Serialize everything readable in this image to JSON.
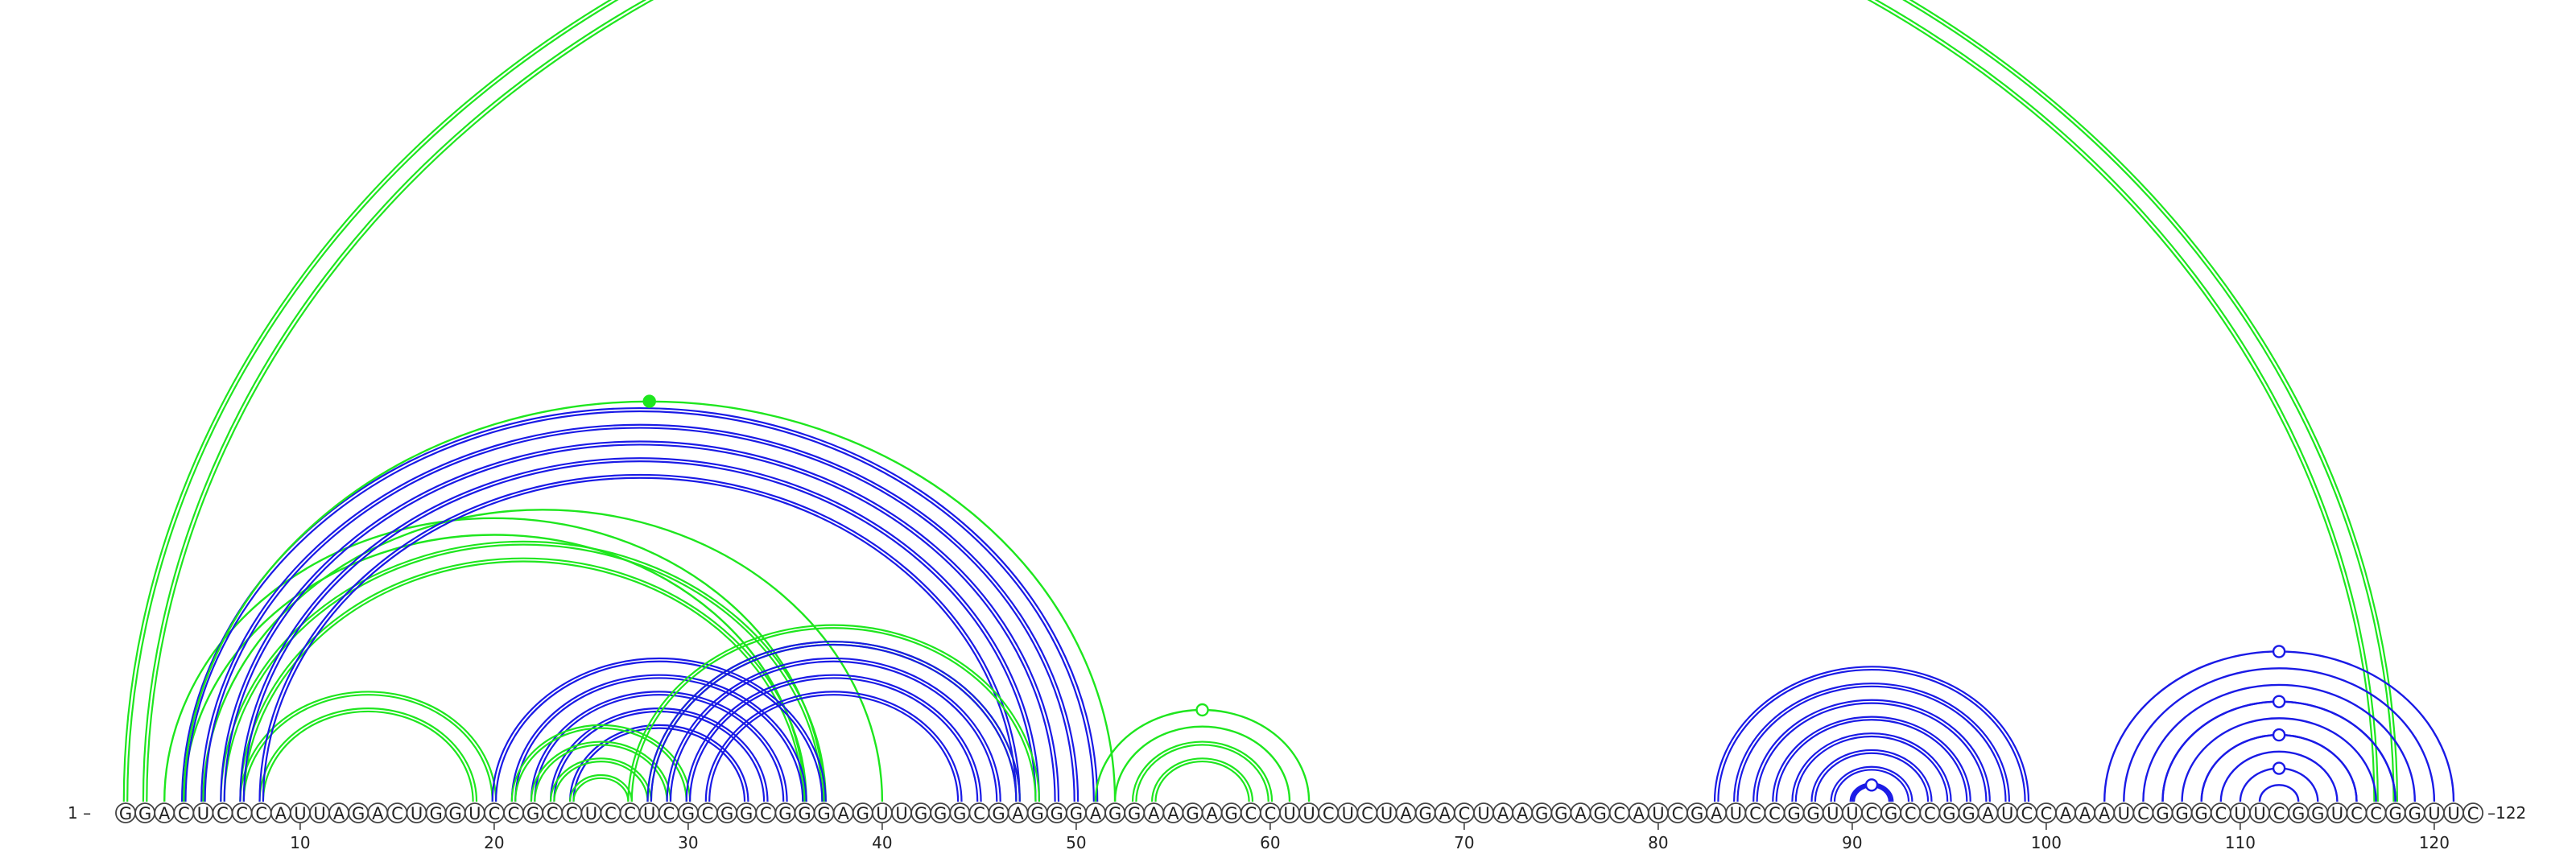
{
  "chart_data": {
    "type": "arc-diagram",
    "sequence": "GGACUCCCAUUAGACUGGUCCGCCUCCUCGCGGCGGGAGUUGGGCGAGGGAGGAAGAGCCUUCUCUAGACUAAGGAGCAUCGAUCCGGUUCGCCGGAUCCAAAUCGGGCUUCGGUCCGGUUC",
    "start_label": "1 –",
    "end_label": "–122",
    "tick_positions": [
      10,
      20,
      30,
      40,
      50,
      60,
      70,
      80,
      90,
      100,
      110,
      120
    ],
    "colors": {
      "green": "#1ee61e",
      "blue": "#1a1ae6"
    },
    "arc_groups": [
      {
        "name": "",
        "color": "green",
        "double": true,
        "pairs": [
          [
            1,
            118
          ],
          [
            2,
            117
          ]
        ]
      },
      {
        "name": "",
        "color": "green",
        "double": true,
        "pairs": [
          [
            7,
            20
          ],
          [
            8,
            19
          ]
        ]
      },
      {
        "name": "",
        "color": "green",
        "double": true,
        "pairs": [
          [
            6,
            37
          ],
          [
            7,
            36
          ]
        ]
      },
      {
        "name": "",
        "color": "green",
        "double": false,
        "pairs": [
          [
            3,
            37
          ],
          [
            4,
            36
          ],
          [
            5,
            40
          ]
        ]
      },
      {
        "name": "",
        "color": "blue",
        "double": true,
        "pairs": [
          [
            4,
            51
          ],
          [
            5,
            50
          ],
          [
            6,
            49
          ],
          [
            7,
            48
          ],
          [
            8,
            47
          ]
        ]
      },
      {
        "name": "",
        "color": "green",
        "double": false,
        "pairs": [
          [
            4,
            52
          ]
        ],
        "marker": {
          "pos": 28,
          "filled": true
        }
      },
      {
        "name": "",
        "color": "blue",
        "double": true,
        "pairs": [
          [
            20,
            37
          ],
          [
            21,
            36
          ],
          [
            22,
            35
          ],
          [
            23,
            34
          ],
          [
            24,
            33
          ]
        ]
      },
      {
        "name": "",
        "color": "green",
        "double": true,
        "pairs": [
          [
            21,
            30
          ],
          [
            22,
            29
          ],
          [
            23,
            28
          ],
          [
            24,
            27
          ]
        ]
      },
      {
        "name": "",
        "color": "green",
        "double": true,
        "pairs": [
          [
            27,
            48
          ],
          [
            28,
            47
          ]
        ]
      },
      {
        "name": "",
        "color": "blue",
        "double": true,
        "pairs": [
          [
            28,
            47
          ],
          [
            29,
            46
          ],
          [
            30,
            45
          ],
          [
            31,
            44
          ]
        ]
      },
      {
        "name": "",
        "color": "green",
        "double": false,
        "pairs": [
          [
            51,
            62
          ],
          [
            52,
            61
          ]
        ],
        "marker": {
          "pos": 56.5,
          "filled": false
        }
      },
      {
        "name": "",
        "color": "green",
        "double": true,
        "pairs": [
          [
            53,
            60
          ],
          [
            54,
            59
          ]
        ]
      },
      {
        "name": "",
        "color": "blue",
        "double": true,
        "pairs": [
          [
            83,
            99
          ],
          [
            84,
            98
          ],
          [
            85,
            97
          ],
          [
            86,
            96
          ],
          [
            87,
            95
          ],
          [
            88,
            94
          ],
          [
            89,
            93
          ],
          [
            90,
            92
          ]
        ]
      },
      {
        "name": "",
        "color": "blue",
        "double": false,
        "pairs": [
          [
            103,
            121
          ],
          [
            104,
            120
          ],
          [
            105,
            119
          ],
          [
            106,
            118
          ],
          [
            107,
            117
          ],
          [
            108,
            116
          ],
          [
            109,
            115
          ],
          [
            110,
            114
          ],
          [
            111,
            113
          ]
        ],
        "markers": [
          {
            "pos": 112,
            "filled": false
          }
        ]
      },
      {
        "name": "",
        "color": "blue",
        "double": false,
        "pairs": [
          [
            106,
            118
          ],
          [
            108,
            116
          ]
        ],
        "marker": {
          "pos": 112,
          "filled": false
        }
      },
      {
        "name": "",
        "color": "blue",
        "double": false,
        "pairs": [
          [
            90,
            92
          ]
        ],
        "marker": {
          "pos": 91,
          "filled": false
        }
      }
    ]
  }
}
